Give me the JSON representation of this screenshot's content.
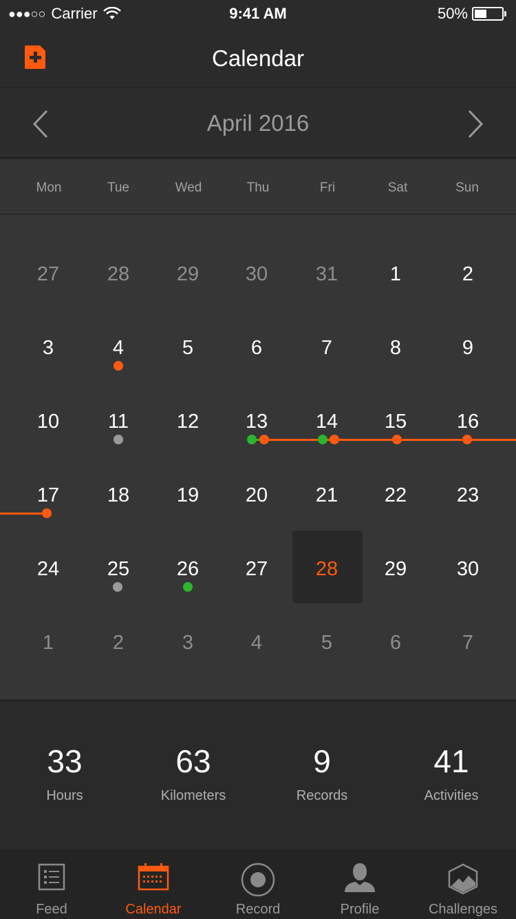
{
  "status": {
    "signal": "●●●○○",
    "carrier": "Carrier",
    "time": "9:41 AM",
    "battery": "50%",
    "battery_level": 0.5
  },
  "header": {
    "title": "Calendar",
    "icon": "new-document-icon"
  },
  "month": {
    "label": "April 2016",
    "prev_icon": "chevron-left-icon",
    "next_icon": "chevron-right-icon"
  },
  "weekdays": [
    "Mon",
    "Tue",
    "Wed",
    "Thu",
    "Fri",
    "Sat",
    "Sun"
  ],
  "weeks": [
    [
      "27",
      "28",
      "29",
      "30",
      "31",
      "1",
      "2"
    ],
    [
      "3",
      "4",
      "5",
      "6",
      "7",
      "8",
      "9"
    ],
    [
      "10",
      "11",
      "12",
      "13",
      "14",
      "15",
      "16"
    ],
    [
      "17",
      "18",
      "19",
      "20",
      "21",
      "22",
      "23"
    ],
    [
      "24",
      "25",
      "26",
      "27",
      "28",
      "29",
      "30"
    ],
    [
      "1",
      "2",
      "3",
      "4",
      "5",
      "6",
      "7"
    ]
  ],
  "selected_day": "28",
  "stats": [
    {
      "value": "33",
      "label": "Hours"
    },
    {
      "value": "63",
      "label": "Kilometers"
    },
    {
      "value": "9",
      "label": "Records"
    },
    {
      "value": "41",
      "label": "Activities"
    }
  ],
  "tabs": [
    {
      "label": "Feed",
      "icon": "list-icon",
      "active": false
    },
    {
      "label": "Calendar",
      "icon": "calendar-icon",
      "active": true
    },
    {
      "label": "Record",
      "icon": "record-icon",
      "active": false
    },
    {
      "label": "Profile",
      "icon": "person-icon",
      "active": false
    },
    {
      "label": "Challenges",
      "icon": "challenge-badge-icon",
      "active": false
    }
  ],
  "colors": {
    "accent": "#ff5a10",
    "green": "#2db52d",
    "gray_dot": "#9a9a9a"
  }
}
